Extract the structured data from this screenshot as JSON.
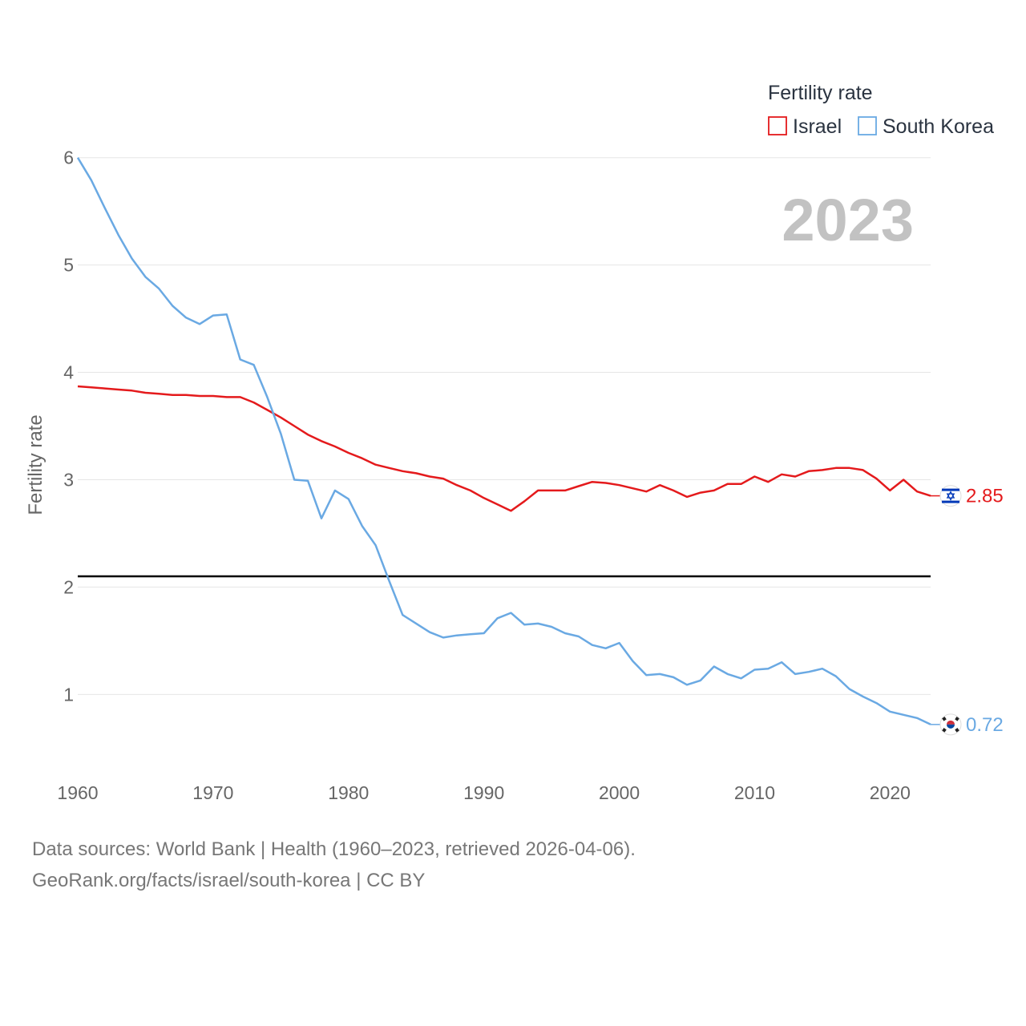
{
  "chart_data": {
    "type": "line",
    "title": "Fertility rate",
    "ylabel": "Fertility rate",
    "xlabel": "",
    "year_label": "2023",
    "xlim": [
      1960,
      2023
    ],
    "ylim": [
      0.45,
      6.05
    ],
    "x_ticks": [
      "1960",
      "1970",
      "1980",
      "1990",
      "2000",
      "2010",
      "2020"
    ],
    "y_ticks": [
      "1",
      "2",
      "3",
      "4",
      "5",
      "6"
    ],
    "reference_line": {
      "value": 2.1,
      "color": "#000000"
    },
    "x": [
      1960,
      1961,
      1962,
      1963,
      1964,
      1965,
      1966,
      1967,
      1968,
      1969,
      1970,
      1971,
      1972,
      1973,
      1974,
      1975,
      1976,
      1977,
      1978,
      1979,
      1980,
      1981,
      1982,
      1983,
      1984,
      1985,
      1986,
      1987,
      1988,
      1989,
      1990,
      1991,
      1992,
      1993,
      1994,
      1995,
      1996,
      1997,
      1998,
      1999,
      2000,
      2001,
      2002,
      2003,
      2004,
      2005,
      2006,
      2007,
      2008,
      2009,
      2010,
      2011,
      2012,
      2013,
      2014,
      2015,
      2016,
      2017,
      2018,
      2019,
      2020,
      2021,
      2022,
      2023
    ],
    "series": [
      {
        "name": "Israel",
        "color": "#e41a1c",
        "end_label": "2.85",
        "flag": "israel-flag",
        "values": [
          3.87,
          3.86,
          3.85,
          3.84,
          3.83,
          3.81,
          3.8,
          3.79,
          3.79,
          3.78,
          3.78,
          3.77,
          3.77,
          3.72,
          3.65,
          3.58,
          3.5,
          3.42,
          3.36,
          3.31,
          3.25,
          3.2,
          3.14,
          3.11,
          3.08,
          3.06,
          3.03,
          3.01,
          2.95,
          2.9,
          2.83,
          2.77,
          2.71,
          2.8,
          2.9,
          2.9,
          2.9,
          2.94,
          2.98,
          2.97,
          2.95,
          2.92,
          2.89,
          2.95,
          2.9,
          2.84,
          2.88,
          2.9,
          2.96,
          2.96,
          3.03,
          2.98,
          3.05,
          3.03,
          3.08,
          3.09,
          3.11,
          3.11,
          3.09,
          3.01,
          2.9,
          3.0,
          2.89,
          2.85
        ]
      },
      {
        "name": "South Korea",
        "color": "#6aa9e3",
        "end_label": "0.72",
        "flag": "south-korea-flag",
        "values": [
          6.0,
          5.79,
          5.53,
          5.28,
          5.06,
          4.89,
          4.78,
          4.62,
          4.51,
          4.45,
          4.53,
          4.54,
          4.12,
          4.07,
          3.77,
          3.43,
          3.0,
          2.99,
          2.64,
          2.9,
          2.82,
          2.57,
          2.39,
          2.06,
          1.74,
          1.66,
          1.58,
          1.53,
          1.55,
          1.56,
          1.57,
          1.71,
          1.76,
          1.65,
          1.66,
          1.63,
          1.57,
          1.54,
          1.46,
          1.43,
          1.48,
          1.31,
          1.18,
          1.19,
          1.16,
          1.09,
          1.13,
          1.26,
          1.19,
          1.15,
          1.23,
          1.24,
          1.3,
          1.19,
          1.21,
          1.24,
          1.17,
          1.05,
          0.98,
          0.92,
          0.84,
          0.81,
          0.78,
          0.72
        ]
      }
    ]
  },
  "footer": {
    "line1": "Data sources: World Bank | Health (1960–2023, retrieved 2026-04-06).",
    "line2": "GeoRank.org/facts/israel/south-korea | CC BY"
  }
}
